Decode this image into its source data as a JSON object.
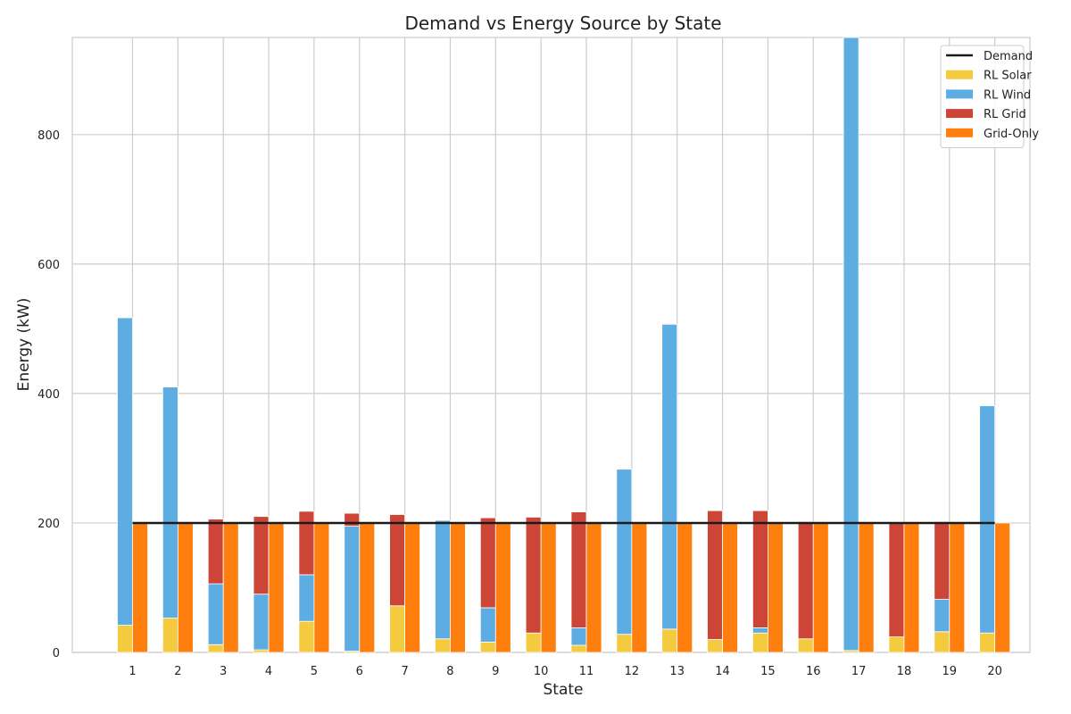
{
  "chart_data": {
    "type": "bar",
    "title": "Demand vs Energy Source by State",
    "xlabel": "State",
    "ylabel": "Energy (kW)",
    "ylim": [
      0,
      950
    ],
    "yticks": [
      0,
      200,
      400,
      600,
      800
    ],
    "grid": true,
    "legend_position": "top-right",
    "categories": [
      "1",
      "2",
      "3",
      "4",
      "5",
      "6",
      "7",
      "8",
      "9",
      "10",
      "11",
      "12",
      "13",
      "14",
      "15",
      "16",
      "17",
      "18",
      "19",
      "20"
    ],
    "series": [
      {
        "name": "Demand",
        "kind": "line",
        "color": "#1a1a1a",
        "values": [
          200,
          200,
          200,
          200,
          200,
          200,
          200,
          200,
          200,
          200,
          200,
          200,
          200,
          200,
          200,
          200,
          200,
          200,
          200,
          200
        ]
      },
      {
        "name": "RL Solar",
        "kind": "stacked-bar",
        "color": "#f4cb3e",
        "values": [
          42,
          53,
          12,
          4,
          48,
          2,
          72,
          21,
          16,
          30,
          11,
          28,
          36,
          20,
          30,
          21,
          3,
          24,
          32,
          30
        ]
      },
      {
        "name": "RL Wind",
        "kind": "stacked-bar",
        "color": "#5eade2",
        "values": [
          475,
          357,
          94,
          86,
          72,
          193,
          0,
          183,
          53,
          0,
          27,
          255,
          471,
          0,
          8,
          0,
          948,
          0,
          50,
          351
        ]
      },
      {
        "name": "RL Grid",
        "kind": "stacked-bar",
        "color": "#cd4536",
        "values": [
          0,
          0,
          100,
          120,
          98,
          20,
          141,
          0,
          139,
          179,
          179,
          0,
          0,
          199,
          181,
          181,
          0,
          177,
          120,
          0
        ]
      },
      {
        "name": "Grid-Only",
        "kind": "bar",
        "color": "#ff7f0e",
        "values": [
          200,
          200,
          200,
          200,
          200,
          200,
          200,
          200,
          200,
          200,
          200,
          200,
          200,
          200,
          200,
          200,
          200,
          200,
          200,
          200
        ]
      }
    ]
  }
}
